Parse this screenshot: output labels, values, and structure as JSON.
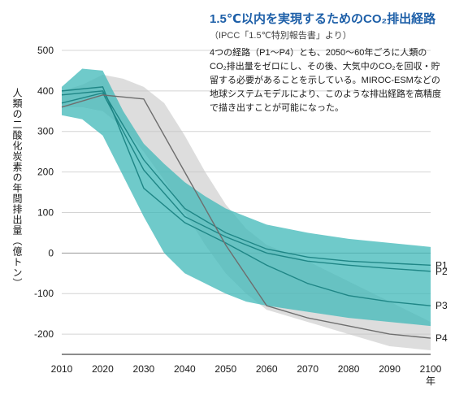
{
  "header": {
    "title": "1.5℃以内を実現するためのCO₂排出経路",
    "subtitle": "（IPCC「1.5℃特別報告書」より）",
    "description": "4つの経路（P1〜P4）とも、2050〜60年ごろに人類のCO₂排出量をゼロにし、その後、大気中のCO₂を回収・貯留する必要があることを示している。MIROC-ESMなどの地球システムモデルにより、このような排出経路を高精度で描き出すことが可能になった。"
  },
  "chart_data": {
    "type": "line",
    "title": "",
    "ylabel": "人類の二酸化炭素の年間排出量（億トン）",
    "xlabel": "年",
    "xlim": [
      2010,
      2100
    ],
    "ylim": [
      -250,
      500
    ],
    "x_ticks": [
      2010,
      2020,
      2030,
      2040,
      2050,
      2060,
      2070,
      2080,
      2090,
      2100
    ],
    "y_ticks": [
      500,
      400,
      300,
      200,
      100,
      0,
      -100,
      -200
    ],
    "colors": {
      "teal": "#3fb8b8",
      "teal_line": "#1f8686",
      "gray": "#c6c6c6",
      "gray_line": "#6e6e6e"
    },
    "gray_band": {
      "x": [
        2010,
        2015,
        2020,
        2025,
        2030,
        2035,
        2040,
        2045,
        2050,
        2055,
        2060,
        2070,
        2080,
        2090,
        2100
      ],
      "upper": [
        400,
        415,
        440,
        430,
        410,
        370,
        290,
        200,
        120,
        60,
        20,
        -20,
        -70,
        -120,
        -170
      ],
      "lower": [
        360,
        360,
        350,
        310,
        250,
        180,
        100,
        20,
        -50,
        -100,
        -140,
        -170,
        -200,
        -230,
        -240
      ]
    },
    "teal_band": {
      "x": [
        2010,
        2015,
        2020,
        2025,
        2030,
        2035,
        2040,
        2045,
        2050,
        2055,
        2060,
        2070,
        2080,
        2090,
        2100
      ],
      "upper": [
        410,
        455,
        450,
        350,
        270,
        220,
        175,
        140,
        110,
        90,
        70,
        50,
        35,
        25,
        15
      ],
      "lower": [
        340,
        330,
        290,
        190,
        90,
        0,
        -50,
        -75,
        -100,
        -120,
        -130,
        -145,
        -160,
        -170,
        -180
      ]
    },
    "series": [
      {
        "name": "P1",
        "color": "#1f8686",
        "x": [
          2010,
          2020,
          2030,
          2040,
          2050,
          2060,
          2070,
          2080,
          2090,
          2100
        ],
        "values": [
          390,
          400,
          230,
          110,
          50,
          10,
          -10,
          -20,
          -25,
          -30
        ]
      },
      {
        "name": "P2",
        "color": "#1f8686",
        "x": [
          2010,
          2020,
          2030,
          2040,
          2050,
          2060,
          2070,
          2080,
          2090,
          2100
        ],
        "values": [
          370,
          395,
          205,
          90,
          40,
          0,
          -20,
          -30,
          -38,
          -45
        ]
      },
      {
        "name": "P3",
        "color": "#1f8686",
        "x": [
          2010,
          2020,
          2030,
          2040,
          2050,
          2060,
          2070,
          2080,
          2090,
          2100
        ],
        "values": [
          400,
          410,
          160,
          75,
          25,
          -30,
          -75,
          -105,
          -120,
          -130
        ]
      },
      {
        "name": "P4",
        "color": "#6e6e6e",
        "x": [
          2010,
          2020,
          2030,
          2040,
          2050,
          2060,
          2070,
          2080,
          2090,
          2100
        ],
        "values": [
          360,
          390,
          380,
          200,
          20,
          -130,
          -160,
          -180,
          -200,
          -210
        ]
      }
    ]
  }
}
